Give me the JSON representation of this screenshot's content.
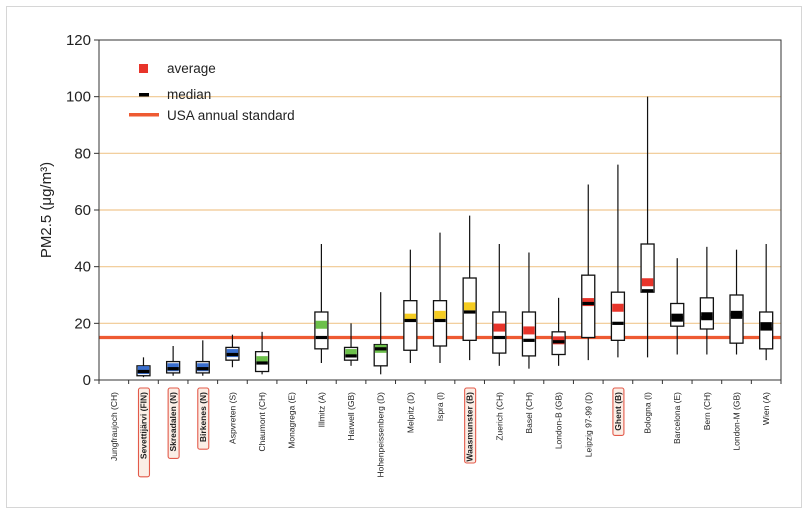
{
  "chart_data": {
    "type": "box",
    "title": "",
    "ylabel": "PM2.5 (μg/m³)",
    "xlabel": "",
    "ylim": [
      0,
      120
    ],
    "yticks": [
      0,
      20,
      40,
      60,
      80,
      100,
      120
    ],
    "grid": true,
    "legend_position": "top-left",
    "legend": {
      "average_label": "average",
      "median_label": "median",
      "standard_label": "USA annual standard"
    },
    "colors": {
      "average": "#e8342a",
      "median": "#000000",
      "standard": "#ee5a32",
      "grid": "#f0c890",
      "highlight_border": "#e35a4a",
      "highlight_fill": "#fbeee6",
      "nordic": "#3a6fce",
      "alpine": "#6cc04a",
      "central": "#f5cc20",
      "urban": "#e8342a"
    },
    "usa_annual_standard": 15,
    "sites": [
      {
        "label": "Jungfraujoch (CH)",
        "highlight": false,
        "fill": null,
        "min": null,
        "q1": null,
        "q3": null,
        "max": null,
        "median": null,
        "mean": null
      },
      {
        "label": "Sevettijärvi (FIN)",
        "highlight": true,
        "fill": "nordic",
        "min": 1,
        "q1": 1.5,
        "q3": 5,
        "max": 8,
        "median": 3,
        "mean": 3.5
      },
      {
        "label": "Skreadalen (N)",
        "highlight": true,
        "fill": "nordic",
        "min": 1.5,
        "q1": 2.5,
        "q3": 6.5,
        "max": 12,
        "median": 4,
        "mean": 4.5
      },
      {
        "label": "Birkenes (N)",
        "highlight": true,
        "fill": "nordic",
        "min": 1.5,
        "q1": 2.5,
        "q3": 6.5,
        "max": 14,
        "median": 4,
        "mean": 4.5
      },
      {
        "label": "Aspvreten (S)",
        "highlight": false,
        "fill": "nordic",
        "min": 4.5,
        "q1": 7,
        "q3": 11.5,
        "max": 16,
        "median": 9,
        "mean": 9.5
      },
      {
        "label": "Chaumont (CH)",
        "highlight": false,
        "fill": "alpine",
        "min": 2,
        "q1": 3,
        "q3": 10,
        "max": 17,
        "median": 6,
        "mean": 7
      },
      {
        "label": "Monagrega (E)",
        "highlight": false,
        "fill": null,
        "min": null,
        "q1": null,
        "q3": null,
        "max": null,
        "median": null,
        "mean": null
      },
      {
        "label": "Illmitz (A)",
        "highlight": false,
        "fill": "alpine",
        "min": 6,
        "q1": 11,
        "q3": 24,
        "max": 48,
        "median": 15,
        "mean": 19.5
      },
      {
        "label": "Harwell (GB)",
        "highlight": false,
        "fill": "alpine",
        "min": 5,
        "q1": 7,
        "q3": 11.5,
        "max": 20,
        "median": 8.5,
        "mean": 9.5
      },
      {
        "label": "Hohenpeissenberg (D)",
        "highlight": false,
        "fill": "alpine",
        "min": 2,
        "q1": 5,
        "q3": 12.5,
        "max": 31,
        "median": 11,
        "mean": 11
      },
      {
        "label": "Melpitz (D)",
        "highlight": false,
        "fill": "central",
        "min": 6,
        "q1": 10.5,
        "q3": 28,
        "max": 46,
        "median": 21,
        "mean": 22
      },
      {
        "label": "Ispra (I)",
        "highlight": false,
        "fill": "central",
        "min": 6,
        "q1": 12,
        "q3": 28,
        "max": 52,
        "median": 21,
        "mean": 23
      },
      {
        "label": "Waasmunster (B)",
        "highlight": true,
        "fill": "central",
        "min": 7,
        "q1": 14,
        "q3": 36,
        "max": 58,
        "median": 24,
        "mean": 26
      },
      {
        "label": "Zuerich (CH)",
        "highlight": false,
        "fill": "urban",
        "min": 5,
        "q1": 9.5,
        "q3": 24,
        "max": 48,
        "median": 15,
        "mean": 18.5
      },
      {
        "label": "Basel (CH)",
        "highlight": false,
        "fill": "urban",
        "min": 4,
        "q1": 8.5,
        "q3": 24,
        "max": 45,
        "median": 14,
        "mean": 17.5
      },
      {
        "label": "London-B (GB)",
        "highlight": false,
        "fill": "urban",
        "min": 5,
        "q1": 9,
        "q3": 17,
        "max": 29,
        "median": 13.5,
        "mean": 14
      },
      {
        "label": "Leipzig 97-99 (D)",
        "highlight": false,
        "fill": "urban",
        "min": 7,
        "q1": 15,
        "q3": 37,
        "max": 69,
        "median": 27,
        "mean": 27.5
      },
      {
        "label": "Ghent (B)",
        "highlight": true,
        "fill": "urban",
        "min": 8,
        "q1": 14,
        "q3": 31,
        "max": 76,
        "median": 20,
        "mean": 25.5
      },
      {
        "label": "Bologna (I)",
        "highlight": false,
        "fill": "urban",
        "min": 8,
        "q1": 31,
        "q3": 48,
        "max": 100,
        "median": 31.5,
        "mean": 34.5
      },
      {
        "label": "Barcelona (E)",
        "highlight": false,
        "fill": "median",
        "min": 9,
        "q1": 19,
        "q3": 27,
        "max": 43,
        "median": 22,
        "mean": 22
      },
      {
        "label": "Bern (CH)",
        "highlight": false,
        "fill": "median",
        "min": 9,
        "q1": 18,
        "q3": 29,
        "max": 47,
        "median": 22,
        "mean": 22.5
      },
      {
        "label": "London-M (GB)",
        "highlight": false,
        "fill": "median",
        "min": 9,
        "q1": 13,
        "q3": 30,
        "max": 46,
        "median": 23,
        "mean": 23
      },
      {
        "label": "Wien (A)",
        "highlight": false,
        "fill": "median",
        "min": 7,
        "q1": 11,
        "q3": 24,
        "max": 48,
        "median": 18,
        "mean": 19
      }
    ]
  }
}
